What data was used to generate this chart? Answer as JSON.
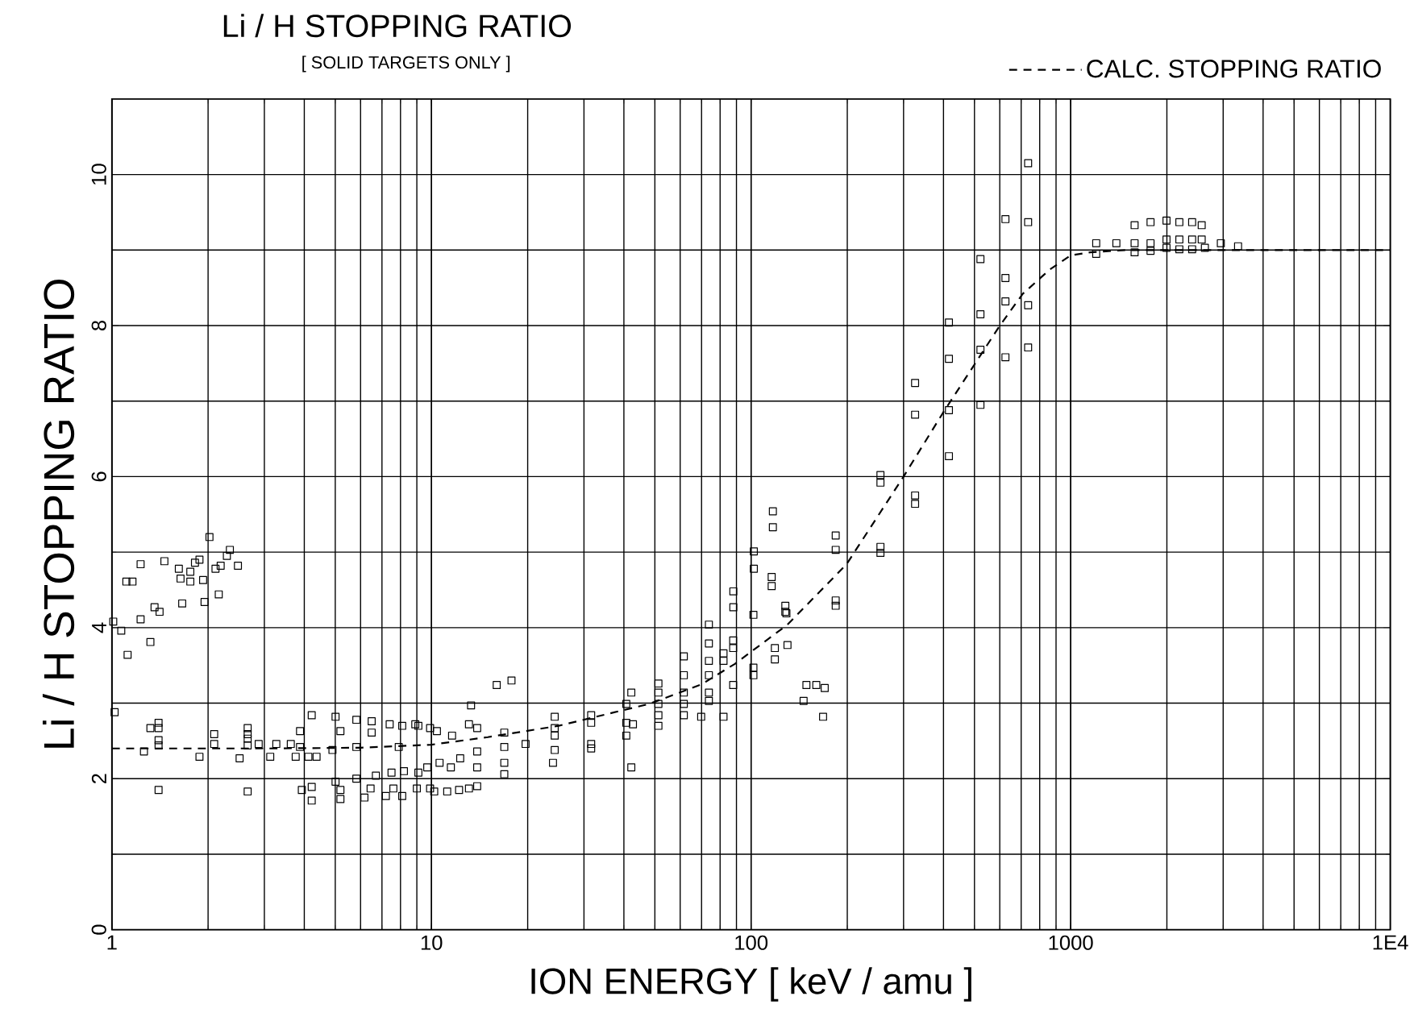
{
  "chart_data": {
    "type": "scatter",
    "title": "Li / H STOPPING RATIO",
    "subtitle": "[ SOLID TARGETS ONLY ]",
    "xlabel": "ION ENERGY [ keV / amu ]",
    "ylabel": "Li / H STOPPING RATIO",
    "log": "x",
    "grid": true,
    "legend": "top right",
    "xlim": [
      1,
      10000
    ],
    "ylim": [
      0,
      11
    ],
    "xticks": [
      1,
      10,
      100,
      1000,
      {
        "value": 10000,
        "label": "1E4"
      }
    ],
    "yticks": [
      0,
      2,
      4,
      6,
      8,
      10
    ],
    "series": [
      {
        "color": "#000000",
        "marker": "square",
        "x": [
          2.02,
          2.34,
          1.23,
          1.46,
          1.62,
          1.82,
          1.88,
          1.11,
          1.16,
          1.64,
          1.76,
          1.76,
          1.93,
          2.11,
          2.19,
          2.29,
          2.48,
          2.16,
          1.66,
          1.95,
          1.36,
          1.41,
          1.23,
          1.01,
          1.07,
          1.32,
          1.12,
          1.02,
          1.4,
          1.4,
          1.32,
          1.4,
          1.4,
          1.26,
          1.4,
          1.88,
          2.09,
          2.09,
          2.66,
          2.66,
          2.66,
          2.66,
          2.51,
          2.66,
          2.88,
          3.13,
          3.27,
          3.63,
          3.76,
          4.22,
          3.88,
          3.88,
          3.93,
          4.22,
          4.22,
          4.12,
          4.37,
          5.01,
          5.19,
          4.9,
          5.01,
          5.19,
          5.19,
          5.82,
          5.82,
          5.82,
          6.17,
          6.45,
          6.5,
          6.5,
          6.7,
          7.2,
          7.4,
          7.5,
          7.6,
          7.9,
          8.1,
          8.1,
          8.2,
          9.1,
          9.0,
          9.1,
          9.9,
          9.9,
          8.9,
          10.4,
          11.6,
          13.1,
          13.9,
          13.9,
          13.9,
          13.9,
          13.1,
          12.2,
          11.2,
          10.2,
          12.3,
          11.5,
          10.6,
          9.7,
          13.3,
          16.0,
          17.8,
          16.9,
          16.9,
          16.9,
          16.9,
          19.7,
          24.3,
          24.3,
          24.3,
          24.3,
          24.0,
          31.6,
          31.6,
          31.6,
          31.6,
          40.7,
          40.7,
          40.7,
          42.2,
          42.7,
          42.2,
          51.3,
          51.3,
          51.3,
          51.3,
          51.3,
          61.6,
          61.6,
          61.6,
          61.6,
          61.6,
          69.8,
          73.8,
          73.8,
          73.8,
          73.8,
          73.8,
          73.8,
          82,
          82,
          82,
          87.9,
          87.9,
          87.9,
          101.7,
          101.7,
          101.7,
          118.7,
          118.7,
          130,
          129,
          117,
          117,
          102,
          102,
          88,
          88,
          116,
          116,
          128,
          128,
          146,
          149,
          160,
          170,
          168,
          184,
          184,
          184,
          184,
          254,
          254,
          254,
          254,
          326,
          326,
          416,
          326,
          326,
          416,
          416,
          416,
          522,
          522,
          522,
          522,
          625,
          625,
          625,
          625,
          736,
          736,
          736,
          736,
          1202,
          1202,
          1390,
          1585,
          1585,
          1585,
          1778,
          1778,
          1778,
          1995,
          1995,
          1995,
          2188,
          2188,
          2188,
          2399,
          2399,
          2399,
          2570,
          2570,
          2630,
          2950,
          3340
        ],
        "values": [
          5.2,
          5.03,
          4.84,
          4.88,
          4.78,
          4.86,
          4.9,
          4.61,
          4.61,
          4.65,
          4.74,
          4.61,
          4.63,
          4.78,
          4.82,
          4.95,
          4.82,
          4.44,
          4.32,
          4.34,
          4.27,
          4.21,
          4.11,
          4.08,
          3.96,
          3.81,
          3.64,
          2.88,
          2.74,
          2.67,
          2.67,
          2.51,
          2.44,
          2.36,
          1.85,
          2.29,
          2.59,
          2.46,
          2.67,
          2.59,
          2.53,
          2.44,
          2.27,
          1.83,
          2.46,
          2.29,
          2.46,
          2.46,
          2.29,
          2.84,
          2.63,
          2.42,
          1.85,
          1.89,
          1.71,
          2.29,
          2.29,
          2.82,
          2.63,
          2.38,
          1.96,
          1.85,
          1.73,
          2.78,
          2.42,
          2.0,
          1.75,
          1.87,
          2.61,
          2.76,
          2.04,
          1.77,
          2.72,
          2.08,
          1.87,
          2.42,
          2.7,
          1.77,
          2.1,
          2.7,
          1.87,
          2.08,
          2.67,
          1.87,
          2.72,
          2.63,
          2.57,
          2.72,
          2.67,
          2.36,
          2.15,
          1.9,
          1.87,
          1.85,
          1.83,
          1.83,
          2.27,
          2.15,
          2.21,
          2.15,
          2.97,
          3.24,
          3.3,
          2.61,
          2.42,
          2.21,
          2.06,
          2.46,
          2.82,
          2.67,
          2.57,
          2.38,
          2.21,
          2.84,
          2.74,
          2.46,
          2.4,
          2.99,
          2.74,
          2.57,
          3.14,
          2.72,
          2.15,
          3.26,
          3.14,
          2.99,
          2.84,
          2.7,
          3.62,
          3.37,
          3.14,
          2.99,
          2.84,
          2.82,
          4.04,
          3.79,
          3.56,
          3.37,
          3.14,
          3.03,
          3.66,
          3.56,
          2.82,
          3.83,
          3.73,
          3.24,
          4.17,
          3.47,
          3.37,
          3.73,
          3.58,
          3.77,
          4.19,
          5.54,
          5.33,
          5.01,
          4.78,
          4.48,
          4.27,
          4.67,
          4.55,
          4.29,
          4.21,
          3.03,
          3.24,
          3.24,
          3.2,
          2.82,
          5.22,
          5.03,
          4.36,
          4.29,
          6.02,
          5.92,
          5.07,
          4.99,
          5.75,
          5.64,
          6.27,
          7.24,
          6.82,
          8.04,
          7.56,
          6.88,
          8.88,
          8.15,
          7.68,
          6.95,
          9.41,
          8.63,
          8.32,
          7.58,
          9.37,
          8.27,
          7.71,
          10.15,
          9.09,
          8.95,
          9.09,
          9.33,
          9.09,
          8.97,
          9.37,
          9.09,
          8.99,
          9.39,
          9.14,
          9.03,
          9.37,
          9.14,
          9.01,
          9.37,
          9.14,
          9.01,
          9.33,
          9.14,
          9.03,
          9.09,
          9.05
        ]
      },
      {
        "type": "line",
        "name": "CALC. STOPPING RATIO",
        "color": "#000000",
        "line_style": "dashed",
        "marker": "none",
        "x": [
          1,
          3,
          6,
          10,
          15,
          25,
          48,
          70,
          89,
          130,
          199,
          300,
          398,
          596,
          708,
          859,
          1000,
          1150,
          1500,
          10000
        ],
        "values": [
          2.4,
          2.4,
          2.41,
          2.45,
          2.55,
          2.7,
          2.99,
          3.25,
          3.52,
          4.04,
          4.84,
          6.0,
          6.84,
          7.98,
          8.42,
          8.74,
          8.93,
          8.97,
          9.0,
          9.0
        ]
      }
    ]
  }
}
